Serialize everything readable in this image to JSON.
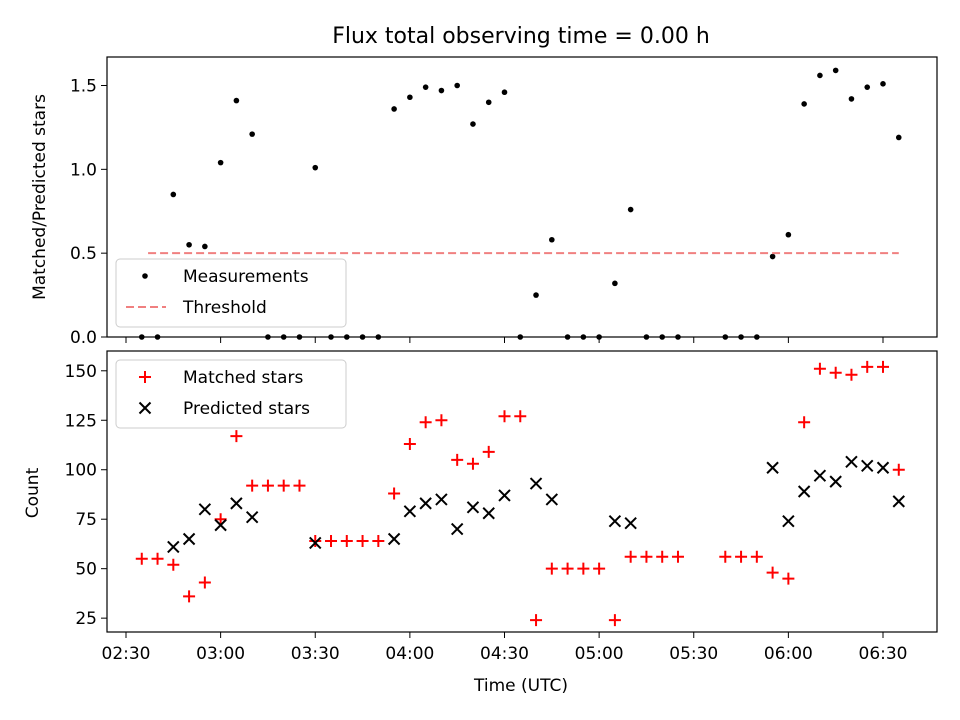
{
  "chart_data": [
    {
      "type": "scatter",
      "title": "Flux total observing time = 0.00 h",
      "xlabel": "",
      "ylabel": "Matched/Predicted stars",
      "ylim": [
        0,
        1.67
      ],
      "yticks": [
        "0.0",
        "0.5",
        "1.0",
        "1.5"
      ],
      "ytick_values": [
        0,
        0.5,
        1.0,
        1.5
      ],
      "xticks": [
        "02:30",
        "03:00",
        "03:30",
        "04:00",
        "04:30",
        "05:00",
        "05:30",
        "06:00",
        "06:30"
      ],
      "legend_position": "lower-left",
      "grid": false,
      "series": [
        {
          "name": "Measurements",
          "color": "#000000",
          "marker": "dot",
          "x": [
            "02:35",
            "02:40",
            "02:45",
            "02:50",
            "02:55",
            "03:00",
            "03:05",
            "03:10",
            "03:15",
            "03:20",
            "03:25",
            "03:30",
            "03:35",
            "03:40",
            "03:45",
            "03:50",
            "03:55",
            "04:00",
            "04:05",
            "04:10",
            "04:15",
            "04:20",
            "04:25",
            "04:30",
            "04:35",
            "04:40",
            "04:45",
            "04:50",
            "04:55",
            "05:00",
            "05:05",
            "05:10",
            "05:15",
            "05:20",
            "05:25",
            "05:40",
            "05:45",
            "05:50",
            "05:55",
            "06:00",
            "06:05",
            "06:10",
            "06:15",
            "06:20",
            "06:25",
            "06:30",
            "06:35"
          ],
          "y": [
            0,
            0,
            0.85,
            0.55,
            0.54,
            1.04,
            1.41,
            1.21,
            0,
            0,
            0,
            1.01,
            0,
            0,
            0,
            0,
            1.36,
            1.43,
            1.49,
            1.47,
            1.5,
            1.27,
            1.4,
            1.46,
            0,
            0.25,
            0.58,
            0,
            0,
            0,
            0.32,
            0.76,
            0,
            0,
            0,
            0,
            0,
            0,
            0.48,
            0.61,
            1.39,
            1.56,
            1.59,
            1.42,
            1.49,
            1.51,
            1.19
          ]
        },
        {
          "name": "Threshold",
          "color": "#f08080",
          "line_style": "dashed",
          "x": [
            "02:37",
            "06:35"
          ],
          "y": [
            0.5,
            0.5
          ]
        }
      ]
    },
    {
      "type": "scatter",
      "title": "",
      "xlabel": "Time (UTC)",
      "ylabel": "Count",
      "ylim": [
        18,
        160
      ],
      "yticks": [
        "25",
        "50",
        "75",
        "100",
        "125",
        "150"
      ],
      "ytick_values": [
        25,
        50,
        75,
        100,
        125,
        150
      ],
      "xticks": [
        "02:30",
        "03:00",
        "03:30",
        "04:00",
        "04:30",
        "05:00",
        "05:30",
        "06:00",
        "06:30"
      ],
      "legend_position": "top-left",
      "grid": false,
      "series": [
        {
          "name": "Matched stars",
          "color": "#ff0000",
          "marker": "plus",
          "x": [
            "02:35",
            "02:40",
            "02:45",
            "02:50",
            "02:55",
            "03:00",
            "03:05",
            "03:10",
            "03:15",
            "03:20",
            "03:25",
            "03:30",
            "03:35",
            "03:40",
            "03:45",
            "03:50",
            "03:55",
            "04:00",
            "04:05",
            "04:10",
            "04:15",
            "04:20",
            "04:25",
            "04:30",
            "04:35",
            "04:40",
            "04:45",
            "04:50",
            "04:55",
            "05:00",
            "05:05",
            "05:10",
            "05:15",
            "05:20",
            "05:25",
            "05:40",
            "05:45",
            "05:50",
            "05:55",
            "06:00",
            "06:05",
            "06:10",
            "06:15",
            "06:20",
            "06:25",
            "06:30",
            "06:35"
          ],
          "y": [
            55,
            55,
            52,
            36,
            43,
            75,
            117,
            92,
            92,
            92,
            92,
            64,
            64,
            64,
            64,
            64,
            88,
            113,
            124,
            125,
            105,
            103,
            109,
            127,
            127,
            24,
            50,
            50,
            50,
            50,
            24,
            56,
            56,
            56,
            56,
            56,
            56,
            56,
            48,
            45,
            124,
            151,
            149,
            148,
            152,
            152,
            100
          ]
        },
        {
          "name": "Predicted stars",
          "color": "#000000",
          "marker": "x",
          "x": [
            "02:45",
            "02:50",
            "02:55",
            "03:00",
            "03:05",
            "03:10",
            "03:30",
            "03:55",
            "04:00",
            "04:05",
            "04:10",
            "04:15",
            "04:20",
            "04:25",
            "04:30",
            "04:40",
            "04:45",
            "05:05",
            "05:10",
            "05:55",
            "06:00",
            "06:05",
            "06:10",
            "06:15",
            "06:20",
            "06:25",
            "06:30",
            "06:35"
          ],
          "y": [
            61,
            65,
            80,
            72,
            83,
            76,
            63,
            65,
            79,
            83,
            85,
            70,
            81,
            78,
            87,
            93,
            85,
            74,
            73,
            101,
            74,
            89,
            97,
            94,
            104,
            102,
            101,
            84
          ]
        }
      ]
    }
  ]
}
